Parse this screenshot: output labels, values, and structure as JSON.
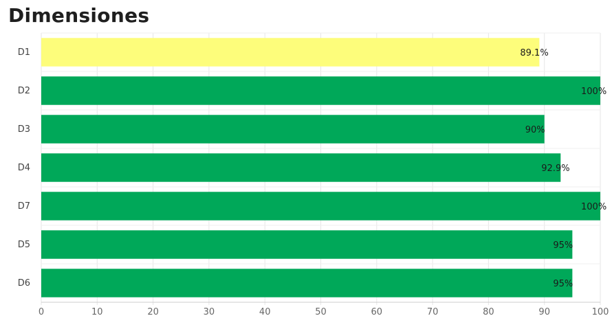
{
  "chart_data": {
    "type": "bar",
    "orientation": "horizontal",
    "title": "Dimensiones",
    "categories": [
      "D1",
      "D2",
      "D3",
      "D4",
      "D7",
      "D5",
      "D6"
    ],
    "values": [
      89.1,
      100,
      90,
      92.9,
      100,
      95,
      95
    ],
    "value_labels": [
      "89.1%",
      "100%",
      "90%",
      "92.9%",
      "100%",
      "95%",
      "95%"
    ],
    "bar_colors": [
      "#fdfd7b",
      "#00a859",
      "#00a859",
      "#00a859",
      "#00a859",
      "#00a859",
      "#00a859"
    ],
    "xlim": [
      0,
      100
    ],
    "xticks": [
      0,
      10,
      20,
      30,
      40,
      50,
      60,
      70,
      80,
      90,
      100
    ],
    "grid": true,
    "legend": "none"
  }
}
